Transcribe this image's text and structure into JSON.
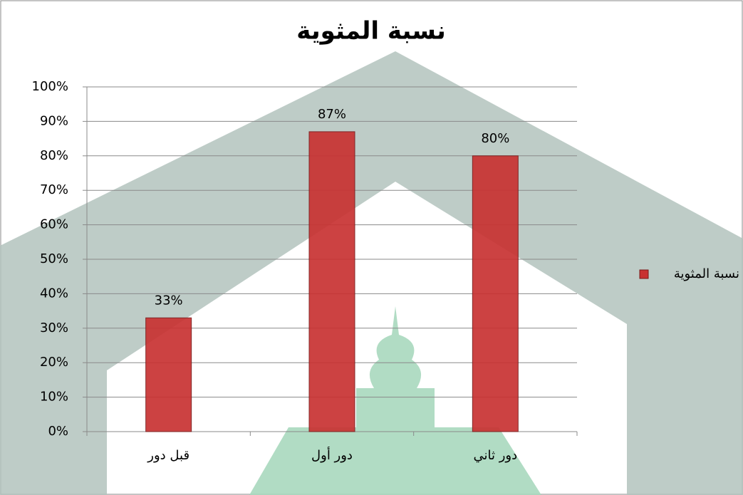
{
  "chart_data": {
    "type": "bar",
    "title": "نسبة المثوية",
    "categories": [
      "قبل دور",
      "دور أول",
      "دور ثاني"
    ],
    "series": [
      {
        "name": "نسبة المثوية",
        "color": "#c83232",
        "values": [
          33,
          87,
          80
        ],
        "value_labels": [
          "33%",
          "87%",
          "80%"
        ]
      }
    ],
    "ylim": [
      0,
      100
    ],
    "yticks": [
      {
        "value": 0,
        "label": "0%"
      },
      {
        "value": 10,
        "label": "10%"
      },
      {
        "value": 20,
        "label": "20%"
      },
      {
        "value": 30,
        "label": "30%"
      },
      {
        "value": 40,
        "label": "40%"
      },
      {
        "value": 50,
        "label": "50%"
      },
      {
        "value": 60,
        "label": "60%"
      },
      {
        "value": 70,
        "label": "70%"
      },
      {
        "value": 80,
        "label": "80%"
      },
      {
        "value": 90,
        "label": "90%"
      },
      {
        "value": 100,
        "label": "100%"
      }
    ],
    "grid": true,
    "legend": "right"
  }
}
